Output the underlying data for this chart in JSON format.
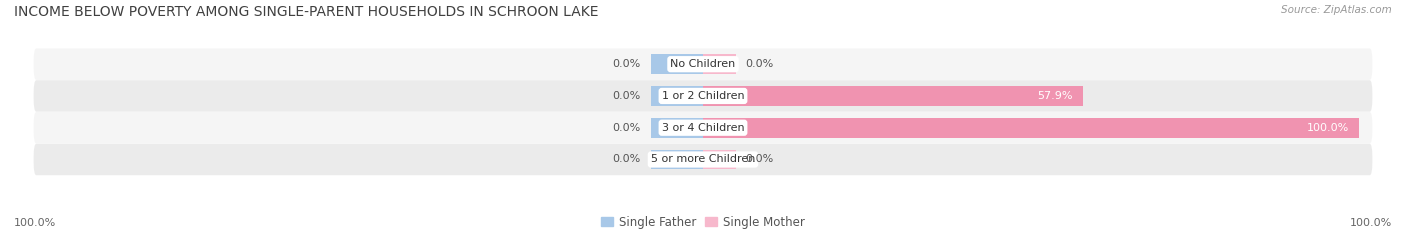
{
  "title": "INCOME BELOW POVERTY AMONG SINGLE-PARENT HOUSEHOLDS IN SCHROON LAKE",
  "source": "Source: ZipAtlas.com",
  "categories": [
    "No Children",
    "1 or 2 Children",
    "3 or 4 Children",
    "5 or more Children"
  ],
  "single_father": [
    0.0,
    0.0,
    0.0,
    0.0
  ],
  "single_mother": [
    0.0,
    57.9,
    100.0,
    0.0
  ],
  "father_color": "#a8c8e8",
  "mother_color": "#f093b0",
  "mother_color_light": "#f7b8cc",
  "row_bg_odd": "#f5f5f5",
  "row_bg_even": "#ebebeb",
  "axis_limit": 100.0,
  "left_label": "100.0%",
  "right_label": "100.0%",
  "legend_entries": [
    "Single Father",
    "Single Mother"
  ],
  "title_fontsize": 10,
  "source_fontsize": 7.5,
  "label_fontsize": 8,
  "cat_fontsize": 8,
  "legend_fontsize": 8.5,
  "father_stub": 8.0,
  "mother_stub": 5.0
}
